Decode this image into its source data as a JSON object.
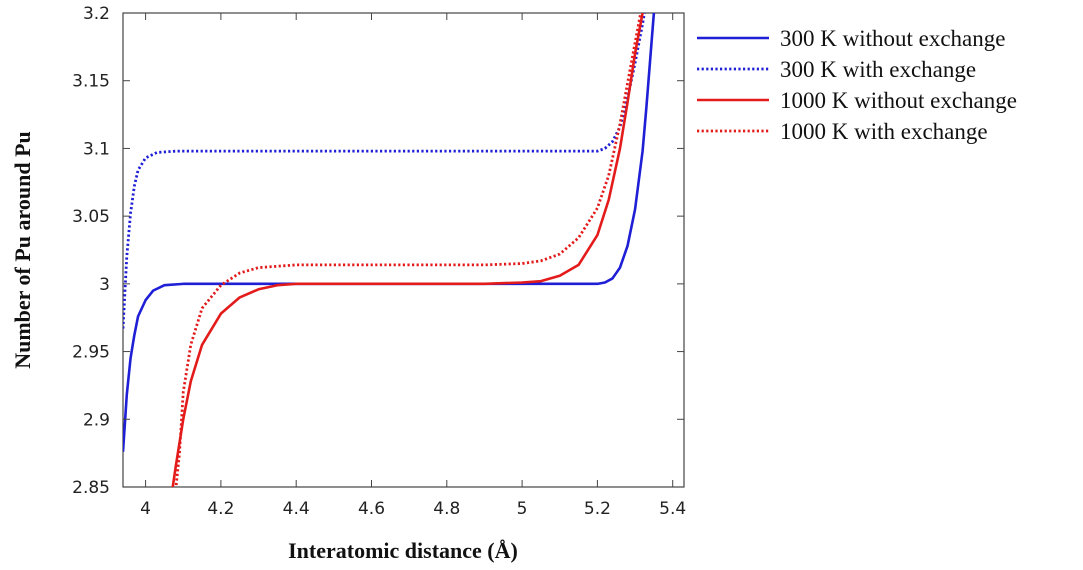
{
  "chart_data": {
    "type": "line",
    "xlabel": "Interatomic distance (Å)",
    "ylabel": "Number of Pu around Pu",
    "xlim": [
      3.94,
      5.43
    ],
    "ylim": [
      2.85,
      3.2
    ],
    "xticks": [
      4,
      4.2,
      4.4,
      4.6,
      4.8,
      5,
      5.2,
      5.4
    ],
    "xtick_labels": [
      "4",
      "4.2",
      "4.4",
      "4.6",
      "4.8",
      "5",
      "5.2",
      "5.4"
    ],
    "yticks": [
      2.85,
      2.9,
      2.95,
      3,
      3.05,
      3.1,
      3.15,
      3.2
    ],
    "ytick_labels": [
      "2.85",
      "2.9",
      "2.95",
      "3",
      "3.05",
      "3.1",
      "3.15",
      "3.2"
    ],
    "grid": false,
    "legend_position": "outside-right-top",
    "series": [
      {
        "name": "300 K without exchange",
        "color": "#1f1fd6",
        "dash": "solid",
        "points": [
          [
            3.94,
            2.876
          ],
          [
            3.95,
            2.918
          ],
          [
            3.96,
            2.945
          ],
          [
            3.97,
            2.962
          ],
          [
            3.98,
            2.976
          ],
          [
            4.0,
            2.988
          ],
          [
            4.02,
            2.995
          ],
          [
            4.05,
            2.999
          ],
          [
            4.1,
            3.0
          ],
          [
            4.5,
            3.0
          ],
          [
            5.0,
            3.0
          ],
          [
            5.2,
            3.0
          ],
          [
            5.22,
            3.001
          ],
          [
            5.24,
            3.004
          ],
          [
            5.26,
            3.012
          ],
          [
            5.28,
            3.028
          ],
          [
            5.3,
            3.055
          ],
          [
            5.32,
            3.098
          ],
          [
            5.33,
            3.13
          ],
          [
            5.34,
            3.165
          ],
          [
            5.35,
            3.2
          ]
        ]
      },
      {
        "name": "300 K with exchange",
        "color": "#1f1fd6",
        "dash": "dotted",
        "points": [
          [
            3.94,
            2.967
          ],
          [
            3.95,
            3.02
          ],
          [
            3.96,
            3.052
          ],
          [
            3.97,
            3.072
          ],
          [
            3.98,
            3.084
          ],
          [
            4.0,
            3.093
          ],
          [
            4.03,
            3.097
          ],
          [
            4.08,
            3.098
          ],
          [
            4.5,
            3.098
          ],
          [
            5.0,
            3.098
          ],
          [
            5.2,
            3.098
          ],
          [
            5.22,
            3.1
          ],
          [
            5.24,
            3.105
          ],
          [
            5.26,
            3.116
          ],
          [
            5.28,
            3.137
          ],
          [
            5.3,
            3.163
          ],
          [
            5.32,
            3.192
          ],
          [
            5.325,
            3.2
          ]
        ]
      },
      {
        "name": "1000 K without exchange",
        "color": "#e31b1b",
        "dash": "solid",
        "points": [
          [
            4.07,
            2.846
          ],
          [
            4.08,
            2.865
          ],
          [
            4.1,
            2.9
          ],
          [
            4.12,
            2.928
          ],
          [
            4.15,
            2.955
          ],
          [
            4.2,
            2.978
          ],
          [
            4.25,
            2.99
          ],
          [
            4.3,
            2.996
          ],
          [
            4.35,
            2.999
          ],
          [
            4.4,
            3.0
          ],
          [
            4.6,
            3.0
          ],
          [
            4.9,
            3.0
          ],
          [
            5.0,
            3.001
          ],
          [
            5.05,
            3.002
          ],
          [
            5.1,
            3.006
          ],
          [
            5.15,
            3.014
          ],
          [
            5.2,
            3.036
          ],
          [
            5.23,
            3.062
          ],
          [
            5.26,
            3.1
          ],
          [
            5.28,
            3.134
          ],
          [
            5.3,
            3.17
          ],
          [
            5.32,
            3.2
          ]
        ]
      },
      {
        "name": "1000 K with exchange",
        "color": "#e31b1b",
        "dash": "dotted",
        "points": [
          [
            4.08,
            2.848
          ],
          [
            4.09,
            2.875
          ],
          [
            4.1,
            2.92
          ],
          [
            4.12,
            2.955
          ],
          [
            4.15,
            2.982
          ],
          [
            4.2,
            2.999
          ],
          [
            4.25,
            3.008
          ],
          [
            4.3,
            3.012
          ],
          [
            4.4,
            3.014
          ],
          [
            4.6,
            3.014
          ],
          [
            4.9,
            3.014
          ],
          [
            5.0,
            3.015
          ],
          [
            5.05,
            3.017
          ],
          [
            5.1,
            3.022
          ],
          [
            5.15,
            3.034
          ],
          [
            5.2,
            3.056
          ],
          [
            5.23,
            3.08
          ],
          [
            5.26,
            3.118
          ],
          [
            5.28,
            3.148
          ],
          [
            5.3,
            3.178
          ],
          [
            5.315,
            3.2
          ]
        ]
      }
    ]
  }
}
